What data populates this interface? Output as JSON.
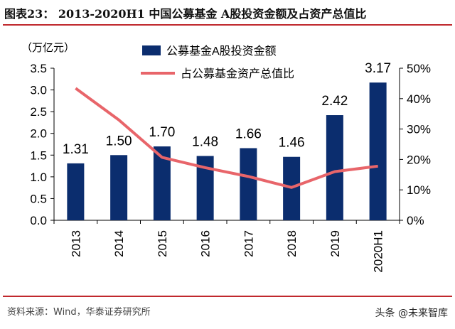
{
  "header": {
    "title": "图表23：  2013-2020H1 中国公募基金 A股投资金额及占资产总值比"
  },
  "footer": {
    "source": "资料来源：Wind，华泰证券研究所",
    "watermark": "头条 @未来智库"
  },
  "chart_data": {
    "type": "bar+line",
    "categories": [
      "2013",
      "2014",
      "2015",
      "2016",
      "2017",
      "2018",
      "2019",
      "2020H1"
    ],
    "ylabel": "（万亿元）",
    "ylim": [
      0,
      3.5
    ],
    "yticks": [
      "0.0",
      "0.5",
      "1.0",
      "1.5",
      "2.0",
      "2.5",
      "3.0",
      "3.5"
    ],
    "y2lim": [
      0,
      50
    ],
    "y2ticks": [
      "0%",
      "10%",
      "20%",
      "30%",
      "40%",
      "50%"
    ],
    "legend_position": "top-center",
    "series": [
      {
        "name": "公募基金A股投资金额",
        "type": "bar",
        "axis": "left",
        "color": "#0b2d6e",
        "values": [
          1.31,
          1.5,
          1.7,
          1.48,
          1.66,
          1.46,
          2.42,
          3.17
        ],
        "labels": [
          "1.31",
          "1.50",
          "1.70",
          "1.48",
          "1.66",
          "1.46",
          "2.42",
          "3.17"
        ]
      },
      {
        "name": "占公募基金资产总值比",
        "type": "line",
        "axis": "right",
        "color": "#e8656a",
        "values": [
          43.4,
          33,
          20.7,
          17.3,
          14.4,
          10.8,
          16,
          17.8
        ]
      }
    ]
  }
}
